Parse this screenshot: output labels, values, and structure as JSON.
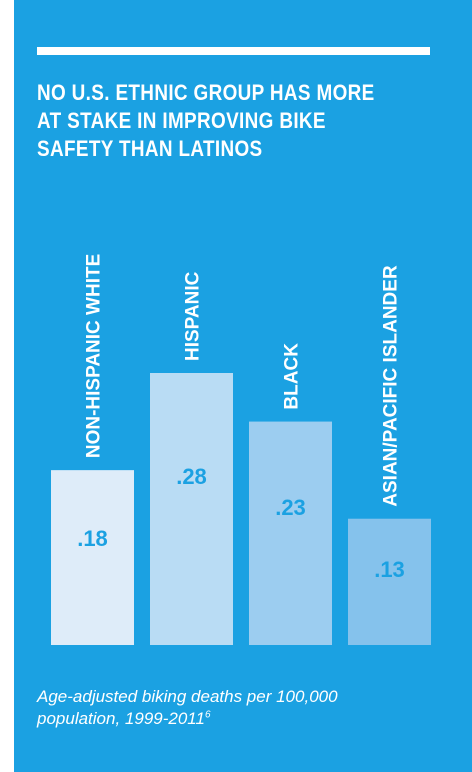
{
  "header": {
    "title": "NO U.S. ETHNIC GROUP HAS MORE AT STAKE IN IMPROVING BIKE SAFETY THAN LATINOS"
  },
  "caption": {
    "text": "Age-adjusted biking deaths per 100,000 population, 1999-2011",
    "footnote": "6"
  },
  "colors": {
    "background": "#1ba1e2",
    "accent_text": "#1ba1e2",
    "white": "#ffffff"
  },
  "chart_data": {
    "type": "bar",
    "title": "NO U.S. ETHNIC GROUP HAS MORE AT STAKE IN IMPROVING BIKE SAFETY THAN LATINOS",
    "xlabel": "",
    "ylabel": "",
    "categories": [
      "NON-HISPANIC WHITE",
      "HISPANIC",
      "BLACK",
      "ASIAN/PACIFIC ISLANDER"
    ],
    "values": [
      0.18,
      0.28,
      0.23,
      0.13
    ],
    "value_labels": [
      ".18",
      ".28",
      ".23",
      ".13"
    ],
    "bar_colors": [
      "#deecf9",
      "#b9dcf4",
      "#9ccdf0",
      "#85c2ec"
    ],
    "ylim": [
      0,
      0.28
    ],
    "grid": false,
    "legend": "none"
  }
}
